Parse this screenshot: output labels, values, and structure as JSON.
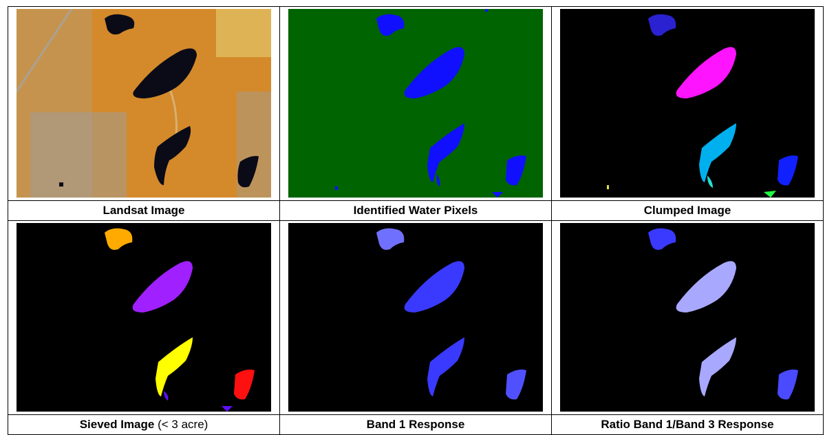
{
  "figure": {
    "panels": [
      {
        "id": "landsat",
        "caption_bold": "Landsat Image",
        "caption_plain": ""
      },
      {
        "id": "water",
        "caption_bold": "Identified Water Pixels",
        "caption_plain": ""
      },
      {
        "id": "clumped",
        "caption_bold": "Clumped Image",
        "caption_plain": ""
      },
      {
        "id": "sieved",
        "caption_bold": "Sieved Image",
        "caption_plain": " (< 3 acre)"
      },
      {
        "id": "band1",
        "caption_bold": "Band 1 Response",
        "caption_plain": ""
      },
      {
        "id": "ratio",
        "caption_bold": "Ratio Band 1/Band 3 Response",
        "caption_plain": ""
      }
    ]
  },
  "colors": {
    "landsat_bg": "#d48a2a",
    "landsat_water": "#0b0b18",
    "water_bg": "#006400",
    "water_fill": "#1010ff",
    "black_bg": "#000000",
    "clumped": {
      "lake_top": "#2a22d0",
      "lake_big": "#ff14ff",
      "lake_mid": "#00b0ee",
      "lake_right": "#1020ff",
      "spot_cyan": "#20e0d0",
      "spot_green": "#20ff40",
      "spot_yellow": "#e0e040"
    },
    "sieved": {
      "lake_top": "#ffaa00",
      "lake_big": "#a020ff",
      "lake_mid": "#ffff00",
      "lake_right": "#ff1010",
      "spot": "#6010ff"
    },
    "band1_fill": "#3a3aff",
    "ratio": {
      "lake_top": "#3a3aff",
      "lake_big": "#a8a8ff",
      "lake_mid": "#a8a8ff",
      "lake_right": "#3a3aff"
    }
  }
}
